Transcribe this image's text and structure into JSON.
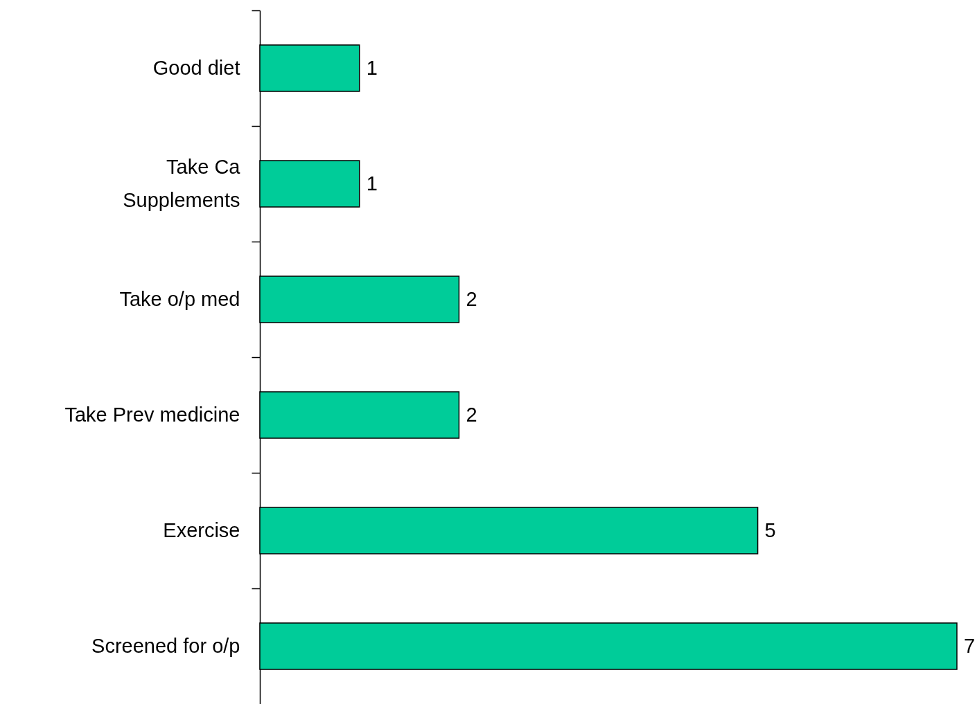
{
  "chart_data": {
    "type": "bar",
    "orientation": "horizontal",
    "categories": [
      "Good diet",
      "Take Ca\nSupplements",
      "Take o/p med",
      "Take Prev medicine",
      "Exercise",
      "Screened for o/p"
    ],
    "values": [
      1,
      1,
      2,
      2,
      5,
      7
    ],
    "color": "#00cc99",
    "data_labels": true
  }
}
